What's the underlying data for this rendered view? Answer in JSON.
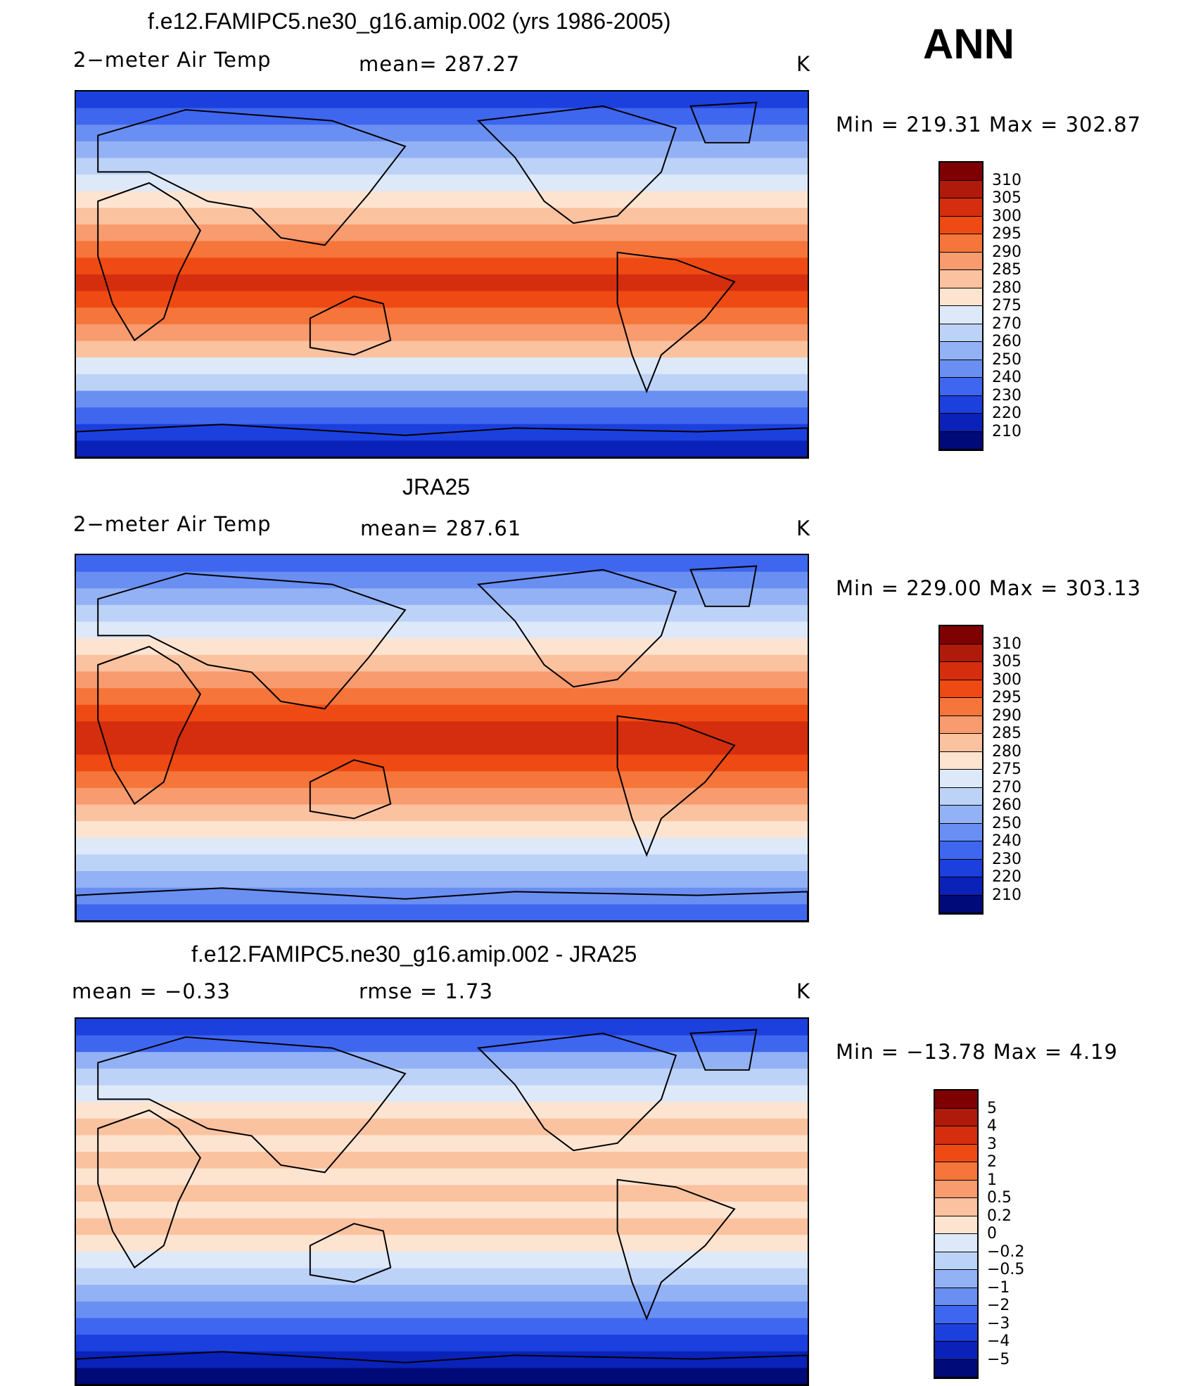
{
  "season": "ANN",
  "panels": [
    {
      "title": "f.e12.FAMIPC5.ne30_g16.amip.002 (yrs 1986-2005)",
      "left": "2−meter Air Temp",
      "middle": "mean=  287.27",
      "units": "K",
      "minmax": "Min  =  219.31  Max  =  302.87",
      "colorbar": {
        "labels": [
          "310",
          "305",
          "300",
          "295",
          "290",
          "285",
          "280",
          "275",
          "270",
          "260",
          "250",
          "240",
          "230",
          "220",
          "210"
        ],
        "colors": [
          "#7f0000",
          "#b01a0a",
          "#d42e0e",
          "#ef4a14",
          "#f5753a",
          "#f89b6e",
          "#fbc2a0",
          "#fde4d0",
          "#dde9f9",
          "#bdd2f7",
          "#93b2f5",
          "#6a8ff2",
          "#3f66ef",
          "#1c40de",
          "#0a22b8",
          "#000a78"
        ]
      },
      "bands": [
        "#1c40de",
        "#3f66ef",
        "#6a8ff2",
        "#93b2f5",
        "#bdd2f7",
        "#dde9f9",
        "#fde4d0",
        "#fbc2a0",
        "#f89b6e",
        "#f5753a",
        "#ef4a14",
        "#d42e0e",
        "#ef4a14",
        "#f5753a",
        "#f89b6e",
        "#fbc2a0",
        "#dde9f9",
        "#bdd2f7",
        "#6a8ff2",
        "#3f66ef",
        "#1c40de",
        "#0a22b8"
      ]
    },
    {
      "title": "JRA25",
      "left": "2−meter Air Temp",
      "middle": "mean=  287.61",
      "units": "K",
      "minmax": "Min  =  229.00  Max  =  303.13",
      "colorbar": {
        "labels": [
          "310",
          "305",
          "300",
          "295",
          "290",
          "285",
          "280",
          "275",
          "270",
          "260",
          "250",
          "240",
          "230",
          "220",
          "210"
        ],
        "colors": [
          "#7f0000",
          "#b01a0a",
          "#d42e0e",
          "#ef4a14",
          "#f5753a",
          "#f89b6e",
          "#fbc2a0",
          "#fde4d0",
          "#dde9f9",
          "#bdd2f7",
          "#93b2f5",
          "#6a8ff2",
          "#3f66ef",
          "#1c40de",
          "#0a22b8",
          "#000a78"
        ]
      },
      "bands": [
        "#3f66ef",
        "#6a8ff2",
        "#93b2f5",
        "#bdd2f7",
        "#dde9f9",
        "#fde4d0",
        "#fbc2a0",
        "#f89b6e",
        "#f5753a",
        "#ef4a14",
        "#d42e0e",
        "#d42e0e",
        "#ef4a14",
        "#f5753a",
        "#f89b6e",
        "#fbc2a0",
        "#fde4d0",
        "#dde9f9",
        "#bdd2f7",
        "#93b2f5",
        "#6a8ff2",
        "#3f66ef"
      ]
    },
    {
      "title": "f.e12.FAMIPC5.ne30_g16.amip.002 - JRA25",
      "left": "mean  =    −0.33",
      "middle": "rmse  =     1.73",
      "units": "K",
      "minmax": "Min  =  −13.78  Max  =     4.19",
      "colorbar": {
        "labels": [
          "5",
          "4",
          "3",
          "2",
          "1",
          "0.5",
          "0.2",
          "0",
          "−0.2",
          "−0.5",
          "−1",
          "−2",
          "−3",
          "−4",
          "−5"
        ],
        "colors": [
          "#7f0000",
          "#b01a0a",
          "#d42e0e",
          "#ef4a14",
          "#f5753a",
          "#f89b6e",
          "#fbc2a0",
          "#fde4d0",
          "#dde9f9",
          "#bdd2f7",
          "#93b2f5",
          "#6a8ff2",
          "#3f66ef",
          "#1c40de",
          "#0a22b8",
          "#000a78"
        ]
      },
      "bands": [
        "#1c40de",
        "#3f66ef",
        "#93b2f5",
        "#bdd2f7",
        "#dde9f9",
        "#fde4d0",
        "#fbc2a0",
        "#fde4d0",
        "#fbc2a0",
        "#fde4d0",
        "#fbc2a0",
        "#fde4d0",
        "#fbc2a0",
        "#fde4d0",
        "#dde9f9",
        "#bdd2f7",
        "#93b2f5",
        "#6a8ff2",
        "#3f66ef",
        "#1c40de",
        "#0a22b8",
        "#000a78"
      ]
    }
  ]
}
